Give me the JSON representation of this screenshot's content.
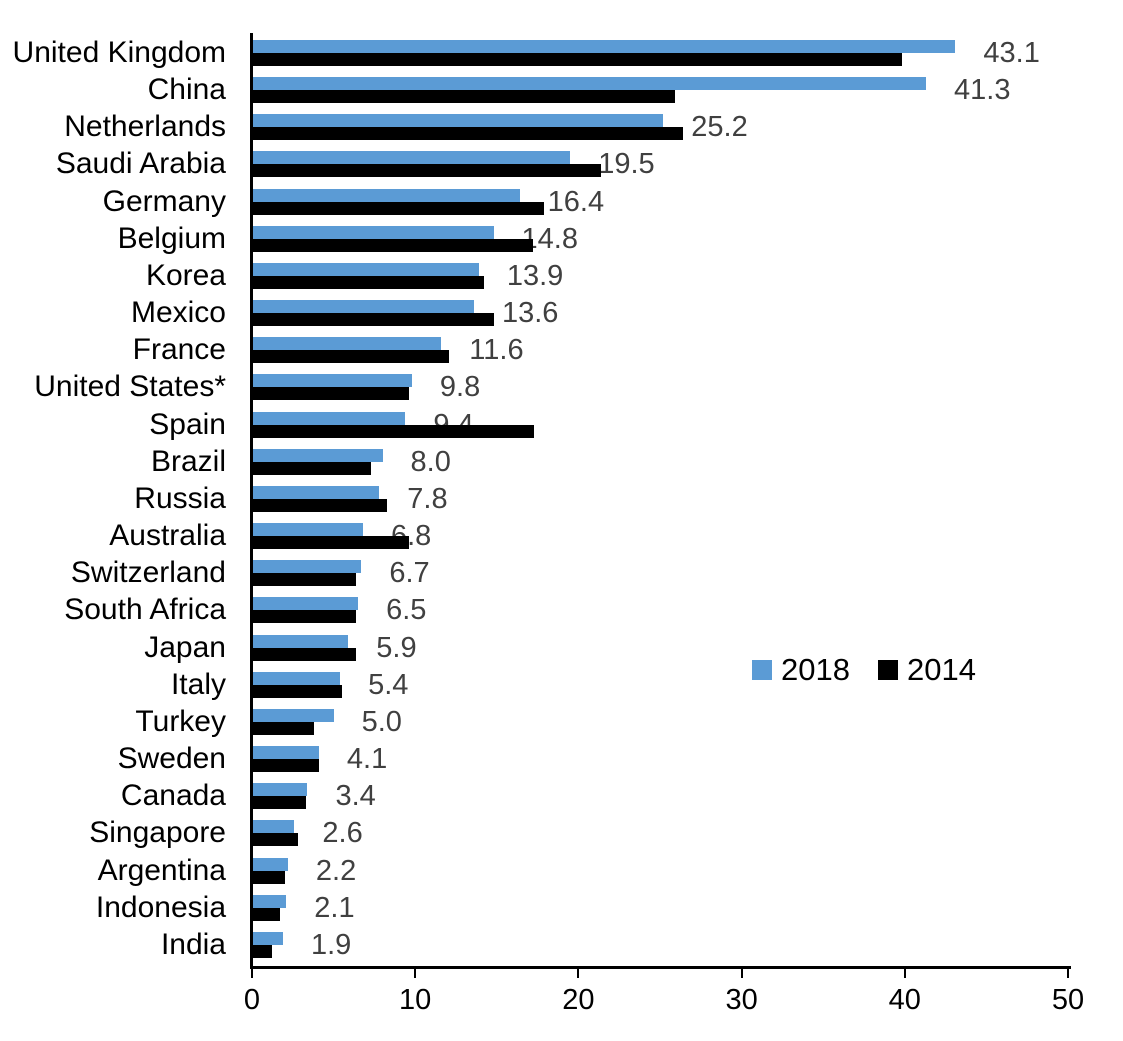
{
  "chart_data": {
    "type": "bar",
    "orientation": "horizontal",
    "title": "",
    "xlabel": "",
    "ylabel": "",
    "grid": false,
    "background_color": "#FFFFFF",
    "axis_color": "#000000",
    "categories": [
      "United Kingdom",
      "China",
      "Netherlands",
      "Saudi Arabia",
      "Germany",
      "Belgium",
      "Korea",
      "Mexico",
      "France",
      "United States*",
      "Spain",
      "Brazil",
      "Russia",
      "Australia",
      "Switzerland",
      "South Africa",
      "Japan",
      "Italy",
      "Turkey",
      "Sweden",
      "Canada",
      "Singapore",
      "Argentina",
      "Indonesia",
      "India"
    ],
    "series": [
      {
        "name": "2018",
        "color": "#5B9BD5",
        "values": [
          43.1,
          41.3,
          25.2,
          19.5,
          16.4,
          14.8,
          13.9,
          13.6,
          11.6,
          9.8,
          9.4,
          8.0,
          7.8,
          6.8,
          6.7,
          6.5,
          5.9,
          5.4,
          5.0,
          4.1,
          3.4,
          2.6,
          2.2,
          2.1,
          1.9
        ]
      },
      {
        "name": "2014",
        "color": "#000000",
        "values_estimated_from_pixels": true,
        "values": [
          39.8,
          25.9,
          26.4,
          21.4,
          17.9,
          17.2,
          14.2,
          14.8,
          12.1,
          9.6,
          17.3,
          7.3,
          8.3,
          9.6,
          6.4,
          6.4,
          6.4,
          5.5,
          3.8,
          4.1,
          3.3,
          2.8,
          2.0,
          1.7,
          1.2
        ]
      }
    ],
    "data_labels": {
      "series": "2018",
      "color": "#404040",
      "values": [
        "43.1",
        "41.3",
        "25.2",
        "19.5",
        "16.4",
        "14.8",
        "13.9",
        "13.6",
        "11.6",
        "9.8",
        "9.4",
        "8.0",
        "7.8",
        "6.8",
        "6.7",
        "6.5",
        "5.9",
        "5.4",
        "5.0",
        "4.1",
        "3.4",
        "2.6",
        "2.2",
        "2.1",
        "1.9"
      ]
    },
    "x_axis": {
      "min": 0,
      "max": 50,
      "ticks": [
        0,
        10,
        20,
        30,
        40,
        50
      ],
      "tick_labels": [
        "0",
        "10",
        "20",
        "30",
        "40",
        "50"
      ]
    },
    "legend": {
      "position": "center-right",
      "entries": [
        {
          "label": "2018",
          "color": "#5B9BD5"
        },
        {
          "label": "2014",
          "color": "#000000"
        }
      ]
    }
  }
}
